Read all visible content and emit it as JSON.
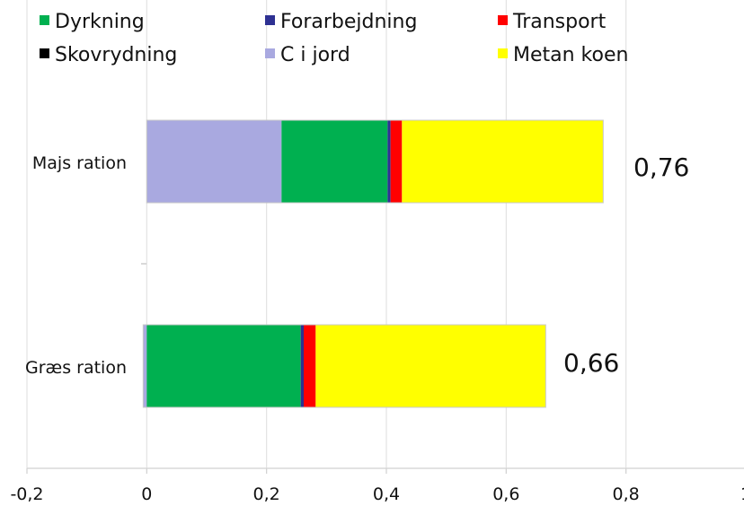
{
  "chart_data": {
    "type": "bar",
    "orientation": "horizontal",
    "stacked": true,
    "categories": [
      "Majs ration",
      "Græs ration"
    ],
    "series": [
      {
        "name": "C i jord",
        "color": "#a9a9e0",
        "values": [
          0.225,
          -0.006
        ]
      },
      {
        "name": "Dyrkning",
        "color": "#00b050",
        "values": [
          0.177,
          0.257
        ]
      },
      {
        "name": "Forarbejdning",
        "color": "#2e3192",
        "values": [
          0.005,
          0.005
        ]
      },
      {
        "name": "Transport",
        "color": "#ff0000",
        "values": [
          0.019,
          0.02
        ]
      },
      {
        "name": "Skovrydning",
        "color": "#000000",
        "values": [
          0,
          0
        ]
      },
      {
        "name": "Metan koen",
        "color": "#ffff00",
        "values": [
          0.336,
          0.384
        ]
      }
    ],
    "totals": [
      "0,76",
      "0,66"
    ],
    "xlim": [
      -0.2,
      1.0
    ],
    "xticks": [
      "-0,2",
      "0",
      "0,2",
      "0,4",
      "0,6",
      "0,8",
      "1"
    ],
    "grid": true,
    "legend_placement": "top",
    "legend_order": [
      "Dyrkning",
      "Forarbejdning",
      "Transport",
      "Skovrydning",
      "C i jord",
      "Metan koen"
    ]
  }
}
